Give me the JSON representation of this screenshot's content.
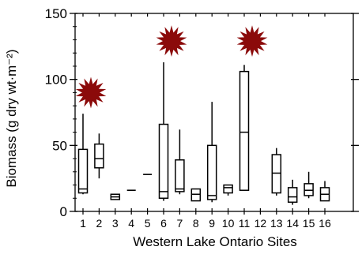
{
  "chart_data": {
    "type": "box",
    "xlabel": "Western Lake Ontario Sites",
    "ylabel": "Biomass (g dry wt·m⁻²)",
    "ylim": [
      0,
      150
    ],
    "yticks": [
      0,
      50,
      100,
      150
    ],
    "categories": [
      "1",
      "2",
      "3",
      "4",
      "5",
      "6",
      "7",
      "8",
      "9",
      "10",
      "11",
      "12",
      "13",
      "14",
      "15",
      "16"
    ],
    "boxes": [
      {
        "site": "1",
        "min": 13,
        "q1": 14,
        "median": 17,
        "q3": 47,
        "max": 74
      },
      {
        "site": "2",
        "min": 25,
        "q1": 33,
        "median": 40,
        "q3": 51,
        "max": 59
      },
      {
        "site": "3",
        "min": 9,
        "q1": 9,
        "median": 11,
        "q3": 13,
        "max": 13
      },
      {
        "site": "4",
        "min": 16,
        "q1": 16,
        "median": 16,
        "q3": 16,
        "max": 16
      },
      {
        "site": "5",
        "min": 28,
        "q1": 28,
        "median": 28,
        "q3": 28,
        "max": 28
      },
      {
        "site": "6",
        "min": 8,
        "q1": 10,
        "median": 15,
        "q3": 66,
        "max": 113
      },
      {
        "site": "7",
        "min": 13,
        "q1": 15,
        "median": 17,
        "q3": 39,
        "max": 62
      },
      {
        "site": "8",
        "min": 8,
        "q1": 8,
        "median": 13,
        "q3": 17,
        "max": 17
      },
      {
        "site": "9",
        "min": 7,
        "q1": 9,
        "median": 12,
        "q3": 50,
        "max": 83
      },
      {
        "site": "10",
        "min": 12,
        "q1": 14,
        "median": 18,
        "q3": 20,
        "max": 20
      },
      {
        "site": "11",
        "min": 16,
        "q1": 16,
        "median": 60,
        "q3": 106,
        "max": 111
      },
      {
        "site": "13",
        "min": 12,
        "q1": 14,
        "median": 29,
        "q3": 43,
        "max": 48
      },
      {
        "site": "14",
        "min": 5,
        "q1": 7,
        "median": 11,
        "q3": 18,
        "max": 24
      },
      {
        "site": "15",
        "min": 10,
        "q1": 12,
        "median": 16,
        "q3": 21,
        "max": 30
      },
      {
        "site": "16",
        "min": 8,
        "q1": 8,
        "median": 13,
        "q3": 18,
        "max": 23
      }
    ],
    "markers": [
      {
        "site": "1",
        "y": 90,
        "shape": "starburst",
        "color": "#8b0a0a"
      },
      {
        "site": "6",
        "y": 129,
        "shape": "starburst",
        "color": "#8b0a0a"
      },
      {
        "site": "11",
        "y": 129,
        "shape": "starburst",
        "color": "#8b0a0a"
      }
    ]
  }
}
